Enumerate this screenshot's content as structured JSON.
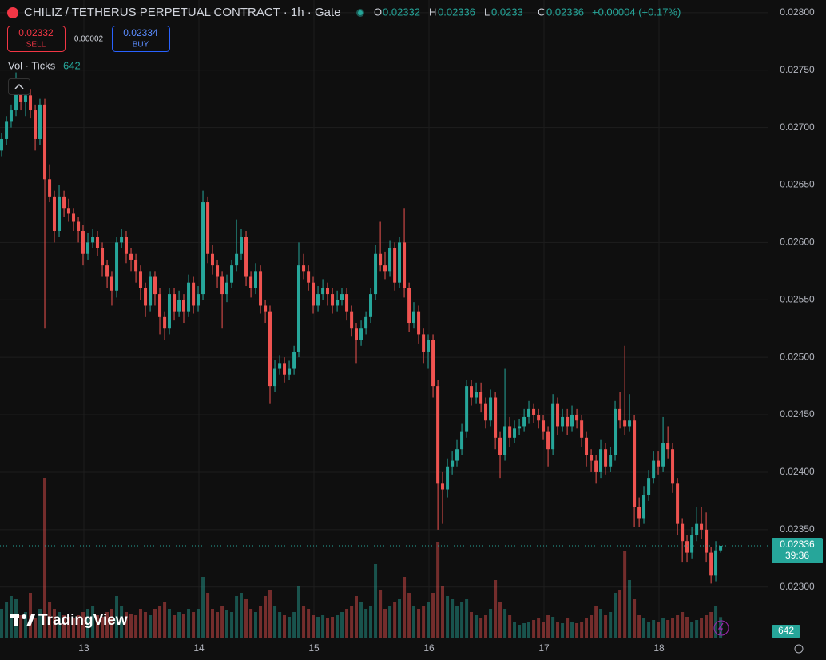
{
  "chart_data": {
    "type": "candlestick",
    "title": "CHILIZ / TETHERUS PERPETUAL CONTRACT · 1h · Gate",
    "ohlc_labels": [
      "O",
      "H",
      "L",
      "C"
    ],
    "change": "+0.00004 (+0.17%)",
    "sell": {
      "price": 0.02332,
      "label": "SELL"
    },
    "spread": 2e-05,
    "buy": {
      "price": 0.02334,
      "label": "BUY"
    },
    "volume_label": "Vol · Ticks",
    "countdown": "39:36",
    "logo": "TradingView",
    "xlim": [
      12.271,
      18.951
    ],
    "xticks": [
      13,
      14,
      15,
      16,
      17,
      18
    ],
    "ylim": [
      0.02256,
      0.02811
    ],
    "yticks": [
      {
        "value": 0.023,
        "label": "0.02300"
      },
      {
        "value": 0.0235,
        "label": "0.02350"
      },
      {
        "value": 0.024,
        "label": "0.02400"
      },
      {
        "value": 0.0245,
        "label": "0.02450"
      },
      {
        "value": 0.025,
        "label": "0.02500"
      },
      {
        "value": 0.0255,
        "label": "0.02550"
      },
      {
        "value": 0.026,
        "label": "0.02600"
      },
      {
        "value": 0.0265,
        "label": "0.02650"
      },
      {
        "value": 0.027,
        "label": "0.02700"
      },
      {
        "value": 0.0275,
        "label": "0.02750"
      },
      {
        "value": 0.028,
        "label": "0.02800"
      }
    ],
    "grid": true,
    "x": [
      12.285,
      12.327,
      12.368,
      12.41,
      12.452,
      12.493,
      12.535,
      12.577,
      12.618,
      12.66,
      12.702,
      12.743,
      12.785,
      12.827,
      12.868,
      12.91,
      12.952,
      12.993,
      13.035,
      13.077,
      13.118,
      13.16,
      13.202,
      13.243,
      13.285,
      13.327,
      13.368,
      13.41,
      13.452,
      13.493,
      13.535,
      13.577,
      13.618,
      13.66,
      13.702,
      13.743,
      13.785,
      13.827,
      13.868,
      13.91,
      13.952,
      13.993,
      14.035,
      14.077,
      14.118,
      14.16,
      14.202,
      14.243,
      14.285,
      14.327,
      14.368,
      14.41,
      14.452,
      14.493,
      14.535,
      14.577,
      14.618,
      14.66,
      14.702,
      14.743,
      14.785,
      14.827,
      14.868,
      14.91,
      14.952,
      14.993,
      15.035,
      15.077,
      15.118,
      15.16,
      15.202,
      15.243,
      15.285,
      15.327,
      15.368,
      15.41,
      15.452,
      15.493,
      15.535,
      15.577,
      15.618,
      15.66,
      15.702,
      15.743,
      15.785,
      15.827,
      15.868,
      15.91,
      15.952,
      15.993,
      16.035,
      16.077,
      16.118,
      16.16,
      16.202,
      16.243,
      16.285,
      16.327,
      16.368,
      16.41,
      16.452,
      16.493,
      16.535,
      16.577,
      16.618,
      16.66,
      16.702,
      16.743,
      16.785,
      16.827,
      16.868,
      16.91,
      16.952,
      16.993,
      17.035,
      17.077,
      17.118,
      17.16,
      17.202,
      17.243,
      17.285,
      17.327,
      17.368,
      17.41,
      17.452,
      17.493,
      17.535,
      17.577,
      17.618,
      17.66,
      17.702,
      17.743,
      17.785,
      17.827,
      17.868,
      17.91,
      17.952,
      17.993,
      18.035,
      18.077,
      18.118,
      18.16,
      18.202,
      18.243,
      18.285,
      18.327,
      18.368,
      18.41,
      18.452,
      18.493,
      18.535
    ],
    "series": [
      {
        "color_up": "#26a69a",
        "color_down": "#ef5350",
        "open": [
          0.0268,
          0.0269,
          0.02705,
          0.02715,
          0.0273,
          0.02722,
          0.02728,
          0.02715,
          0.0269,
          0.0272,
          0.02655,
          0.0264,
          0.0261,
          0.0264,
          0.0263,
          0.02625,
          0.02618,
          0.0261,
          0.0259,
          0.026,
          0.02605,
          0.02595,
          0.0258,
          0.0257,
          0.02558,
          0.026,
          0.02605,
          0.0259,
          0.02585,
          0.02575,
          0.0256,
          0.02545,
          0.0257,
          0.02555,
          0.02535,
          0.02525,
          0.02555,
          0.0254,
          0.0255,
          0.0254,
          0.02565,
          0.02545,
          0.02555,
          0.02635,
          0.0259,
          0.0258,
          0.0257,
          0.02555,
          0.02565,
          0.0258,
          0.0259,
          0.02605,
          0.0257,
          0.0256,
          0.02575,
          0.02545,
          0.0254,
          0.02475,
          0.0249,
          0.02495,
          0.02485,
          0.0249,
          0.02505,
          0.0258,
          0.02575,
          0.02565,
          0.02545,
          0.02555,
          0.0256,
          0.02555,
          0.02545,
          0.0255,
          0.02555,
          0.0254,
          0.02525,
          0.02515,
          0.02525,
          0.02535,
          0.02555,
          0.0259,
          0.0258,
          0.02575,
          0.02595,
          0.02565,
          0.026,
          0.0256,
          0.0253,
          0.0254,
          0.0252,
          0.02505,
          0.02515,
          0.02475,
          0.0239,
          0.02385,
          0.02405,
          0.0241,
          0.0242,
          0.02435,
          0.02475,
          0.02465,
          0.0247,
          0.0246,
          0.02445,
          0.02465,
          0.0243,
          0.02415,
          0.0244,
          0.0243,
          0.02438,
          0.0244,
          0.02448,
          0.02455,
          0.0245,
          0.02445,
          0.02435,
          0.0242,
          0.0246,
          0.0244,
          0.02448,
          0.0244,
          0.0245,
          0.02445,
          0.0243,
          0.02415,
          0.0241,
          0.024,
          0.0242,
          0.02405,
          0.02415,
          0.02455,
          0.02445,
          0.0244,
          0.02445,
          0.0237,
          0.0236,
          0.0238,
          0.02395,
          0.0241,
          0.02405,
          0.02425,
          0.0242,
          0.0239,
          0.02355,
          0.0234,
          0.0233,
          0.02345,
          0.02355,
          0.0235,
          0.0233,
          0.0231,
          0.02332
        ],
        "high": [
          0.02695,
          0.0271,
          0.0272,
          0.02748,
          0.02735,
          0.02733,
          0.02733,
          0.0272,
          0.02725,
          0.02725,
          0.02668,
          0.02645,
          0.0265,
          0.02645,
          0.02638,
          0.0263,
          0.02622,
          0.02615,
          0.02608,
          0.02612,
          0.0261,
          0.026,
          0.02585,
          0.02575,
          0.02605,
          0.02612,
          0.0261,
          0.02595,
          0.0259,
          0.0258,
          0.02565,
          0.02575,
          0.02575,
          0.0256,
          0.0254,
          0.0256,
          0.0256,
          0.02558,
          0.02555,
          0.02572,
          0.0257,
          0.02562,
          0.02645,
          0.0264,
          0.02598,
          0.02585,
          0.02575,
          0.02572,
          0.02585,
          0.0262,
          0.02612,
          0.0261,
          0.02575,
          0.02582,
          0.0258,
          0.0255,
          0.02545,
          0.02498,
          0.02502,
          0.025,
          0.02497,
          0.0251,
          0.026,
          0.0259,
          0.0258,
          0.0257,
          0.02562,
          0.02568,
          0.02565,
          0.0256,
          0.02558,
          0.0256,
          0.0256,
          0.02545,
          0.0253,
          0.02532,
          0.0254,
          0.0256,
          0.02598,
          0.02618,
          0.02592,
          0.02602,
          0.026,
          0.02605,
          0.0263,
          0.02565,
          0.02548,
          0.02545,
          0.02525,
          0.0252,
          0.0252,
          0.0248,
          0.024,
          0.02412,
          0.02418,
          0.02428,
          0.02442,
          0.0248,
          0.0248,
          0.02478,
          0.02478,
          0.02465,
          0.02472,
          0.0247,
          0.02435,
          0.0249,
          0.02448,
          0.02445,
          0.02446,
          0.02455,
          0.02462,
          0.0246,
          0.02455,
          0.0245,
          0.0244,
          0.02468,
          0.02465,
          0.02455,
          0.02455,
          0.02458,
          0.02455,
          0.0245,
          0.02435,
          0.0242,
          0.02415,
          0.02428,
          0.02425,
          0.02422,
          0.02462,
          0.0247,
          0.0251,
          0.02468,
          0.0245,
          0.02378,
          0.02388,
          0.02402,
          0.02418,
          0.02418,
          0.02448,
          0.0244,
          0.02425,
          0.02395,
          0.0236,
          0.02345,
          0.02352,
          0.0237,
          0.0237,
          0.02365,
          0.02335,
          0.0234,
          0.02336
        ],
        "low": [
          0.02675,
          0.02685,
          0.027,
          0.0271,
          0.02715,
          0.0271,
          0.02708,
          0.0268,
          0.02685,
          0.02525,
          0.02635,
          0.026,
          0.02605,
          0.02622,
          0.02618,
          0.0261,
          0.026,
          0.0258,
          0.02585,
          0.02595,
          0.02588,
          0.0257,
          0.0256,
          0.02545,
          0.02552,
          0.02595,
          0.02582,
          0.02575,
          0.02565,
          0.0255,
          0.02535,
          0.0254,
          0.02545,
          0.0252,
          0.02515,
          0.0252,
          0.02532,
          0.02535,
          0.0253,
          0.02535,
          0.02538,
          0.0254,
          0.0255,
          0.02582,
          0.02572,
          0.0256,
          0.02525,
          0.02548,
          0.0256,
          0.02575,
          0.02585,
          0.02562,
          0.02552,
          0.02555,
          0.02538,
          0.0253,
          0.0246,
          0.0247,
          0.02485,
          0.02478,
          0.0248,
          0.02485,
          0.025,
          0.02568,
          0.02558,
          0.02538,
          0.0254,
          0.0255,
          0.02545,
          0.02538,
          0.0254,
          0.02545,
          0.02532,
          0.02518,
          0.02495,
          0.0251,
          0.0252,
          0.0253,
          0.0255,
          0.02575,
          0.02568,
          0.0257,
          0.02558,
          0.0256,
          0.02552,
          0.02522,
          0.02525,
          0.02512,
          0.02495,
          0.0249,
          0.02465,
          0.0235,
          0.02355,
          0.02378,
          0.02398,
          0.02405,
          0.02415,
          0.0243,
          0.02458,
          0.0246,
          0.02452,
          0.02438,
          0.0244,
          0.0242,
          0.02395,
          0.0241,
          0.02422,
          0.02425,
          0.02432,
          0.02435,
          0.02442,
          0.02443,
          0.02438,
          0.02428,
          0.02405,
          0.02415,
          0.02432,
          0.02435,
          0.02432,
          0.02435,
          0.02438,
          0.02422,
          0.02405,
          0.024,
          0.0239,
          0.02395,
          0.02398,
          0.024,
          0.0241,
          0.02438,
          0.02432,
          0.02435,
          0.02352,
          0.02352,
          0.02355,
          0.02375,
          0.0239,
          0.02398,
          0.024,
          0.02412,
          0.02382,
          0.02345,
          0.02322,
          0.02322,
          0.02325,
          0.0234,
          0.02342,
          0.02322,
          0.02303,
          0.02305,
          0.0233
        ],
        "close": [
          0.0269,
          0.02705,
          0.02715,
          0.0273,
          0.02722,
          0.02728,
          0.02715,
          0.0269,
          0.0272,
          0.02655,
          0.0264,
          0.0261,
          0.0264,
          0.0263,
          0.02625,
          0.02618,
          0.0261,
          0.0259,
          0.026,
          0.02605,
          0.02595,
          0.0258,
          0.0257,
          0.02558,
          0.026,
          0.02605,
          0.0259,
          0.02585,
          0.02575,
          0.0256,
          0.02545,
          0.0257,
          0.02555,
          0.02535,
          0.02525,
          0.02555,
          0.0254,
          0.0255,
          0.0254,
          0.02565,
          0.02545,
          0.02555,
          0.02635,
          0.0259,
          0.0258,
          0.0257,
          0.02555,
          0.02565,
          0.0258,
          0.0259,
          0.02605,
          0.0257,
          0.0256,
          0.02575,
          0.02545,
          0.0254,
          0.02475,
          0.0249,
          0.02495,
          0.02485,
          0.0249,
          0.02505,
          0.0258,
          0.02575,
          0.02565,
          0.02545,
          0.02555,
          0.0256,
          0.02555,
          0.02545,
          0.0255,
          0.02555,
          0.0254,
          0.02525,
          0.02515,
          0.02525,
          0.02535,
          0.02555,
          0.0259,
          0.0258,
          0.02575,
          0.02595,
          0.02565,
          0.026,
          0.0256,
          0.0253,
          0.0254,
          0.0252,
          0.02505,
          0.02515,
          0.02475,
          0.0239,
          0.02385,
          0.02405,
          0.0241,
          0.0242,
          0.02435,
          0.02475,
          0.02465,
          0.0247,
          0.0246,
          0.02445,
          0.02465,
          0.0243,
          0.02415,
          0.0244,
          0.0243,
          0.02438,
          0.0244,
          0.02448,
          0.02455,
          0.0245,
          0.02445,
          0.02435,
          0.0242,
          0.0246,
          0.0244,
          0.02448,
          0.0244,
          0.0245,
          0.02445,
          0.0243,
          0.02415,
          0.0241,
          0.024,
          0.0242,
          0.02405,
          0.02415,
          0.02455,
          0.02445,
          0.0244,
          0.02445,
          0.0237,
          0.0236,
          0.0238,
          0.02395,
          0.0241,
          0.02405,
          0.02425,
          0.0242,
          0.0239,
          0.02355,
          0.0234,
          0.0233,
          0.02345,
          0.02355,
          0.0235,
          0.0233,
          0.0231,
          0.02332,
          0.02336
        ],
        "volume": [
          900,
          1100,
          1300,
          1200,
          700,
          800,
          1400,
          600,
          900,
          5000,
          1100,
          900,
          800,
          700,
          650,
          600,
          700,
          800,
          900,
          1000,
          700,
          650,
          800,
          900,
          1300,
          1000,
          800,
          750,
          700,
          900,
          800,
          700,
          900,
          1000,
          1100,
          900,
          700,
          800,
          750,
          900,
          800,
          900,
          1900,
          1400,
          900,
          800,
          1000,
          850,
          800,
          1300,
          1400,
          1200,
          900,
          800,
          1000,
          1300,
          1500,
          1000,
          800,
          700,
          650,
          800,
          1600,
          1000,
          900,
          700,
          650,
          700,
          600,
          650,
          700,
          800,
          900,
          1000,
          1300,
          1100,
          900,
          1000,
          2300,
          1500,
          900,
          1000,
          1100,
          1200,
          1900,
          1400,
          1000,
          900,
          1000,
          1100,
          1400,
          3000,
          1600,
          1300,
          1200,
          1000,
          1100,
          1200,
          800,
          700,
          600,
          700,
          900,
          1800,
          1100,
          900,
          700,
          500,
          400,
          450,
          500,
          550,
          600,
          500,
          700,
          650,
          500,
          450,
          600,
          500,
          450,
          500,
          600,
          700,
          1000,
          900,
          700,
          800,
          1400,
          1500,
          2700,
          1800,
          1200,
          700,
          600,
          500,
          550,
          500,
          600,
          550,
          600,
          700,
          800,
          650,
          500,
          550,
          600,
          700,
          800,
          1000,
          642
        ]
      }
    ]
  }
}
